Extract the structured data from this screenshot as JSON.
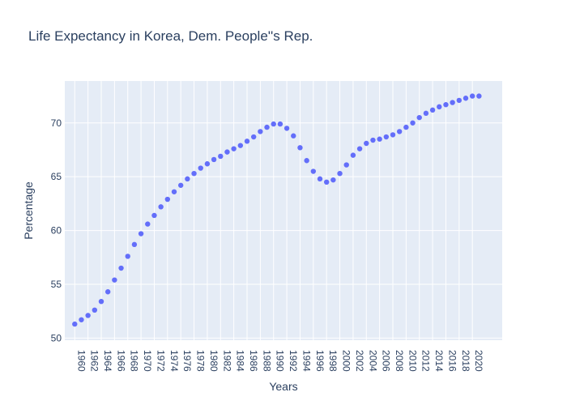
{
  "chart_data": {
    "type": "scatter",
    "title": "Life Expectancy in Korea, Dem. People''s Rep.",
    "xlabel": "Years",
    "ylabel": "Percentage",
    "x": [
      1960,
      1961,
      1962,
      1963,
      1964,
      1965,
      1966,
      1967,
      1968,
      1969,
      1970,
      1971,
      1972,
      1973,
      1974,
      1975,
      1976,
      1977,
      1978,
      1979,
      1980,
      1981,
      1982,
      1983,
      1984,
      1985,
      1986,
      1987,
      1988,
      1989,
      1990,
      1991,
      1992,
      1993,
      1994,
      1995,
      1996,
      1997,
      1998,
      1999,
      2000,
      2001,
      2002,
      2003,
      2004,
      2005,
      2006,
      2007,
      2008,
      2009,
      2010,
      2011,
      2012,
      2013,
      2014,
      2015,
      2016,
      2017,
      2018,
      2019,
      2020,
      2021
    ],
    "y": [
      51.3,
      51.7,
      52.1,
      52.6,
      53.4,
      54.3,
      55.4,
      56.5,
      57.6,
      58.7,
      59.7,
      60.6,
      61.4,
      62.2,
      62.9,
      63.6,
      64.2,
      64.8,
      65.3,
      65.8,
      66.2,
      66.6,
      66.9,
      67.3,
      67.6,
      67.9,
      68.3,
      68.7,
      69.2,
      69.6,
      69.9,
      69.9,
      69.5,
      68.8,
      67.7,
      66.5,
      65.5,
      64.8,
      64.5,
      64.7,
      65.3,
      66.1,
      67.0,
      67.6,
      68.1,
      68.4,
      68.5,
      68.7,
      68.9,
      69.2,
      69.6,
      70.0,
      70.5,
      70.9,
      71.2,
      71.5,
      71.7,
      71.9,
      72.1,
      72.3,
      72.5,
      72.5
    ],
    "xticks": [
      "1960",
      "1962",
      "1964",
      "1966",
      "1968",
      "1970",
      "1972",
      "1974",
      "1976",
      "1978",
      "1980",
      "1982",
      "1984",
      "1986",
      "1988",
      "1990",
      "1992",
      "1994",
      "1996",
      "1998",
      "2000",
      "2002",
      "2004",
      "2006",
      "2008",
      "2010",
      "2012",
      "2014",
      "2016",
      "2018",
      "2020"
    ],
    "yticks": [
      "50",
      "55",
      "60",
      "65",
      "70"
    ],
    "xlim": [
      1958.5,
      2024.5
    ],
    "ylim": [
      49.8,
      73.9
    ],
    "grid": true,
    "colors": {
      "marker": "#636efa",
      "plot_bg": "#e5ecf6",
      "grid": "#ffffff",
      "text": "#2a3f5f"
    }
  }
}
